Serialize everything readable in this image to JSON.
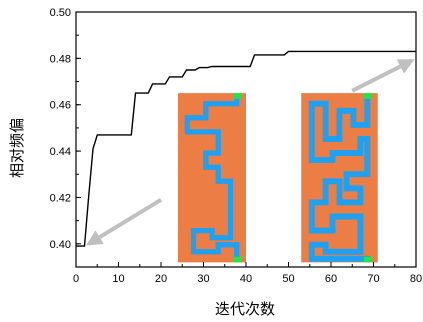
{
  "chart_data": {
    "type": "line",
    "xlabel": "迭代次数",
    "ylabel": "相对频偏",
    "xlim": [
      0,
      80
    ],
    "ylim": [
      0.39,
      0.5
    ],
    "x_ticks": [
      0,
      10,
      20,
      30,
      40,
      50,
      60,
      70,
      80
    ],
    "y_ticks": [
      0.4,
      0.42,
      0.44,
      0.46,
      0.48,
      0.5
    ],
    "y_tick_labels": [
      "0.40",
      "0.42",
      "0.44",
      "0.46",
      "0.48",
      "0.50"
    ],
    "grid": false,
    "series": [
      {
        "color": "#000000",
        "points": [
          [
            0,
            0.399
          ],
          [
            2,
            0.399
          ],
          [
            3,
            0.421
          ],
          [
            4,
            0.441
          ],
          [
            5,
            0.447
          ],
          [
            13,
            0.447
          ],
          [
            14,
            0.465
          ],
          [
            17,
            0.465
          ],
          [
            18,
            0.469
          ],
          [
            21,
            0.469
          ],
          [
            22,
            0.472
          ],
          [
            25,
            0.472
          ],
          [
            26,
            0.475
          ],
          [
            28,
            0.475
          ],
          [
            29,
            0.476
          ],
          [
            31,
            0.476
          ],
          [
            32,
            0.4765
          ],
          [
            41,
            0.4765
          ],
          [
            42,
            0.4815
          ],
          [
            49,
            0.4815
          ],
          [
            50,
            0.483
          ],
          [
            80,
            0.483
          ]
        ]
      }
    ],
    "annotations": [
      {
        "type": "arrow",
        "from": [
          20,
          0.419
        ],
        "to": [
          3,
          0.4
        ],
        "color": "#c0c0c0"
      },
      {
        "type": "arrow",
        "from": [
          65,
          0.466
        ],
        "to": [
          79,
          0.479
        ],
        "color": "#c0c0c0"
      }
    ],
    "insets": [
      {
        "name": "maze-start",
        "x_range": [
          24,
          40
        ],
        "y_range": [
          0.392,
          0.465
        ],
        "background": "#ec7d45",
        "path_color": "#1ea1f0",
        "marker_color": "#22e44a"
      },
      {
        "name": "maze-end",
        "x_range": [
          53,
          71
        ],
        "y_range": [
          0.392,
          0.465
        ],
        "background": "#ec7d45",
        "path_color": "#1ea1f0",
        "marker_color": "#22e44a"
      }
    ]
  }
}
